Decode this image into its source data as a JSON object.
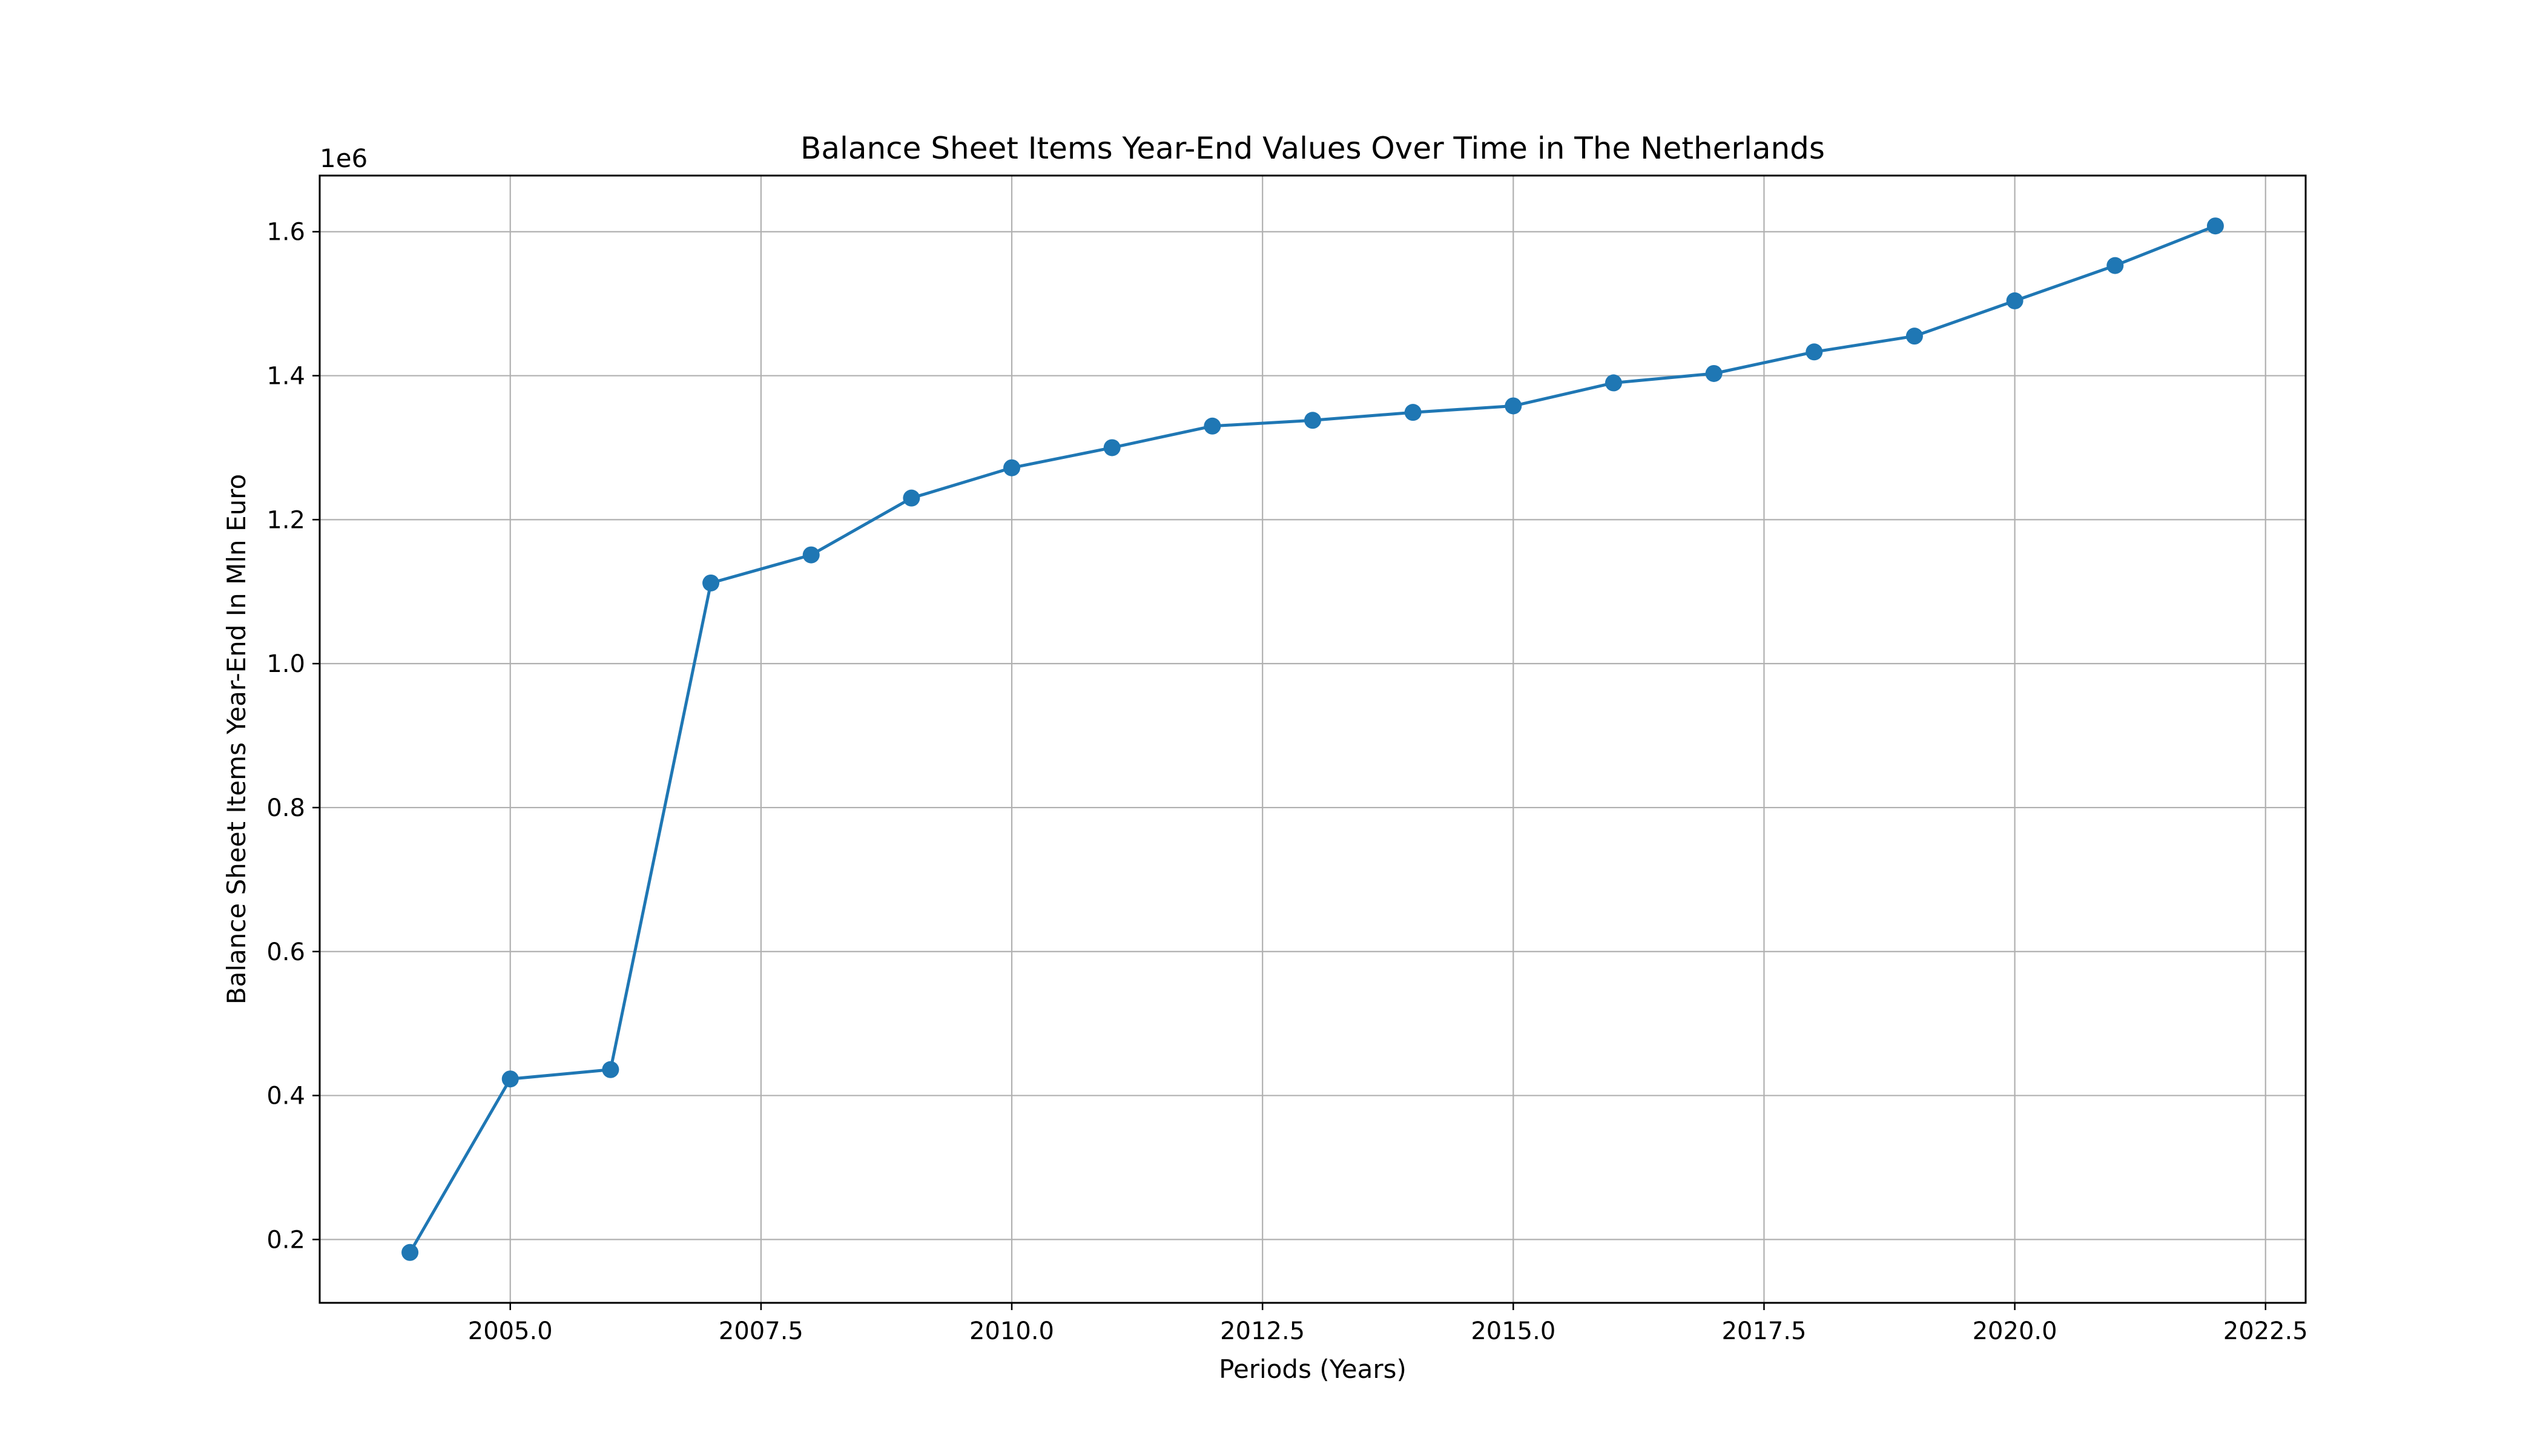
{
  "chart_data": {
    "type": "line",
    "title": "Balance Sheet Items Year-End Values Over Time in The Netherlands",
    "xlabel": "Periods (Years)",
    "ylabel": "Balance Sheet Items Year-End In Mln Euro",
    "y_offset_label": "1e6",
    "xlim": [
      2003.1,
      2022.9
    ],
    "ylim": [
      0.112,
      1.678
    ],
    "y_multiplier": 1000000,
    "x_ticks": [
      2005.0,
      2007.5,
      2010.0,
      2012.5,
      2015.0,
      2017.5,
      2020.0,
      2022.5
    ],
    "x_tick_labels": [
      "2005.0",
      "2007.5",
      "2010.0",
      "2012.5",
      "2015.0",
      "2017.5",
      "2020.0",
      "2022.5"
    ],
    "y_ticks": [
      0.2,
      0.4,
      0.6,
      0.8,
      1.0,
      1.2,
      1.4,
      1.6
    ],
    "y_tick_labels": [
      "0.2",
      "0.4",
      "0.6",
      "0.8",
      "1.0",
      "1.2",
      "1.4",
      "1.6"
    ],
    "grid": true,
    "marker": "circle",
    "series": [
      {
        "color": "#1f77b4",
        "x": [
          2004,
          2005,
          2006,
          2007,
          2008,
          2009,
          2010,
          2011,
          2012,
          2013,
          2014,
          2015,
          2016,
          2017,
          2018,
          2019,
          2020,
          2021,
          2022
        ],
        "y": [
          0.182,
          0.423,
          0.436,
          1.112,
          1.151,
          1.23,
          1.272,
          1.3,
          1.33,
          1.338,
          1.349,
          1.358,
          1.39,
          1.403,
          1.433,
          1.455,
          1.504,
          1.553,
          1.608
        ]
      }
    ]
  }
}
